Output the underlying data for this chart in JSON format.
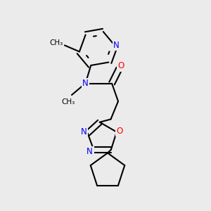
{
  "bg_color": "#ebebeb",
  "bond_color": "#000000",
  "N_color": "#0000ff",
  "O_color": "#ff0000",
  "bond_width": 1.5,
  "figsize": [
    3.0,
    3.0
  ],
  "dpi": 100,
  "xlim": [
    0,
    10
  ],
  "ylim": [
    0,
    10
  ]
}
